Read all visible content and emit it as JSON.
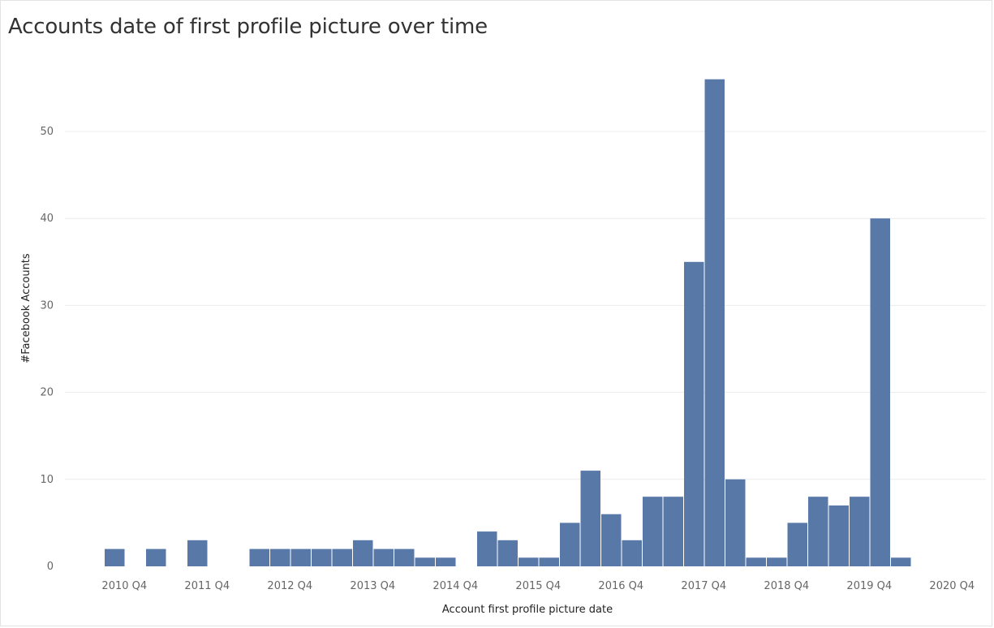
{
  "chart_data": {
    "type": "bar",
    "title": "Accounts date of first profile picture over time",
    "xlabel": "Account first profile picture date",
    "ylabel": "#Facebook Accounts",
    "ylim": [
      0,
      56
    ],
    "yticks": [
      0,
      10,
      20,
      30,
      40,
      50
    ],
    "grid": true,
    "bar_color": "#5878a8",
    "x_tick_labels": [
      "2010 Q4",
      "2011 Q4",
      "2012 Q4",
      "2013 Q4",
      "2014 Q4",
      "2015 Q4",
      "2016 Q4",
      "2017 Q4",
      "2018 Q4",
      "2019 Q4",
      "2020 Q4"
    ],
    "categories": [
      "2010 Q4",
      "2011 Q1",
      "2011 Q2",
      "2011 Q3",
      "2011 Q4",
      "2012 Q1",
      "2012 Q2",
      "2012 Q3",
      "2012 Q4",
      "2013 Q1",
      "2013 Q2",
      "2013 Q3",
      "2013 Q4",
      "2014 Q1",
      "2014 Q2",
      "2014 Q3",
      "2014 Q4",
      "2015 Q1",
      "2015 Q2",
      "2015 Q3",
      "2015 Q4",
      "2016 Q1",
      "2016 Q2",
      "2016 Q3",
      "2016 Q4",
      "2017 Q1",
      "2017 Q2",
      "2017 Q3",
      "2017 Q4",
      "2018 Q1",
      "2018 Q2",
      "2018 Q3",
      "2018 Q4",
      "2019 Q1",
      "2019 Q2",
      "2019 Q3",
      "2019 Q4",
      "2020 Q1",
      "2020 Q2",
      "2020 Q3",
      "2020 Q4"
    ],
    "values": [
      2,
      0,
      2,
      0,
      3,
      0,
      0,
      2,
      2,
      2,
      2,
      2,
      3,
      2,
      2,
      1,
      1,
      0,
      4,
      3,
      1,
      1,
      5,
      11,
      6,
      3,
      8,
      8,
      35,
      56,
      10,
      1,
      1,
      5,
      8,
      7,
      8,
      40,
      1,
      0,
      0
    ]
  }
}
